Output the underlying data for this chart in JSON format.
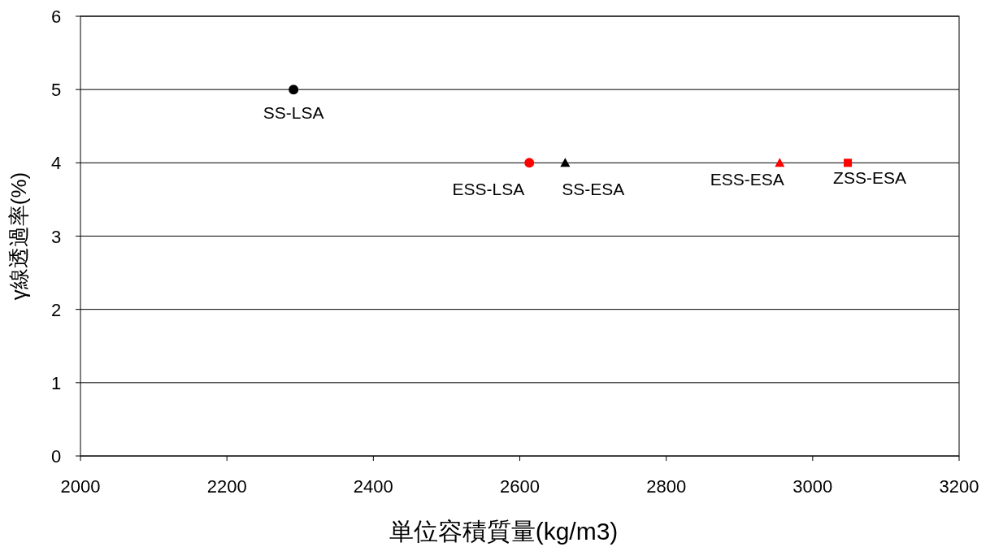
{
  "chart_data": {
    "type": "scatter",
    "xlabel": "単位容積質量(kg/m3)",
    "ylabel": "γ線透過率(%)",
    "xlim": [
      2000,
      3200
    ],
    "xticks": [
      2000,
      2200,
      2400,
      2600,
      2800,
      3000,
      3200
    ],
    "ylim": [
      0,
      6
    ],
    "yticks": [
      0,
      1,
      2,
      3,
      4,
      5,
      6
    ],
    "grid": "y",
    "series": [
      {
        "name": "SS-LSA",
        "color": "#000000",
        "marker": "circle",
        "x": [
          2291
        ],
        "values": [
          5
        ]
      },
      {
        "name": "ESS-LSA",
        "color": "#ff0000",
        "marker": "circle",
        "x": [
          2613
        ],
        "values": [
          4
        ]
      },
      {
        "name": "SS-ESA",
        "color": "#000000",
        "marker": "triangle",
        "x": [
          2662
        ],
        "values": [
          4
        ]
      },
      {
        "name": "ESS-ESA",
        "color": "#ff0000",
        "marker": "triangle",
        "x": [
          2955
        ],
        "values": [
          4
        ]
      },
      {
        "name": "ZSS-ESA",
        "color": "#ff0000",
        "marker": "square",
        "x": [
          3048
        ],
        "values": [
          4
        ]
      }
    ]
  }
}
